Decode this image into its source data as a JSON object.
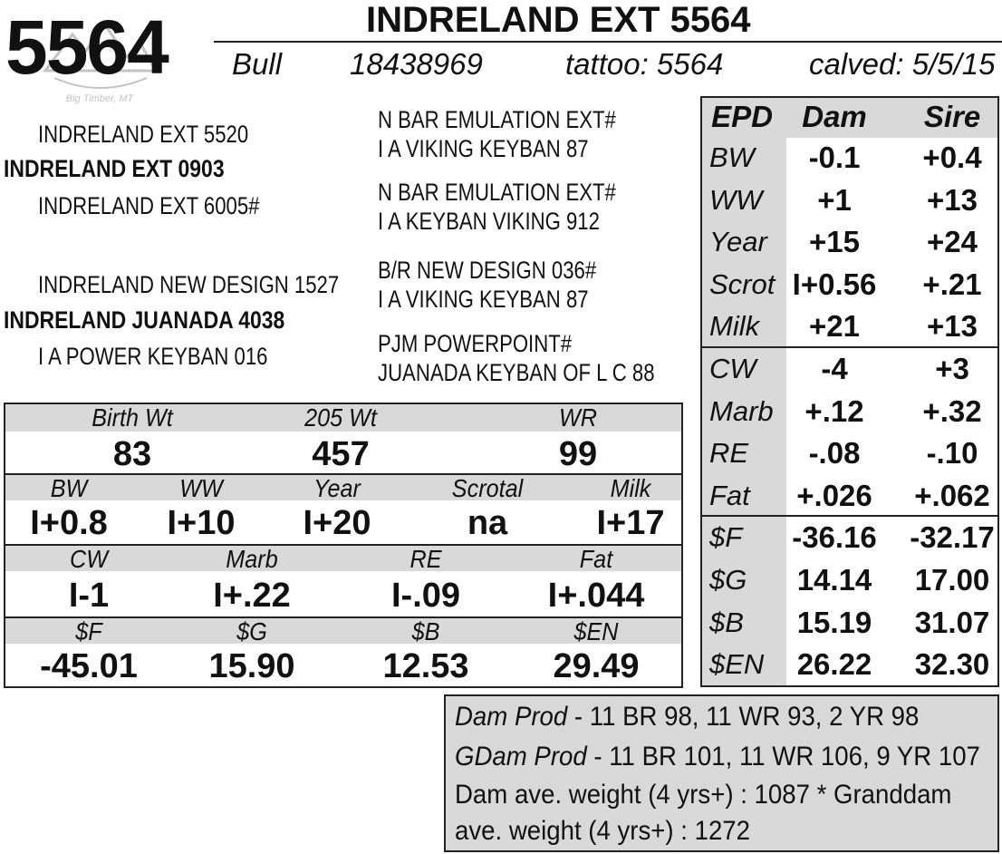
{
  "header": {
    "lot_number": "5564",
    "name": "INDRELAND EXT 5564",
    "sex": "Bull",
    "registration": "18438969",
    "tattoo": "tattoo: 5564",
    "calved": "calved: 5/5/15",
    "logo_text": "Big Timber, MT"
  },
  "pedigree": {
    "sire": "INDRELAND EXT 0903",
    "sire_sire": "INDRELAND EXT 5520",
    "sire_dam": "INDRELAND EXT 6005#",
    "sss": "N BAR EMULATION EXT#",
    "ssd": "I A VIKING KEYBAN 87",
    "sds": "N BAR EMULATION EXT#",
    "sdd": "I A KEYBAN VIKING 912",
    "dam": "INDRELAND JUANADA 4038",
    "dam_sire": "INDRELAND NEW DESIGN 1527",
    "dam_dam": "I A POWER KEYBAN 016",
    "dss": "B/R NEW DESIGN 036#",
    "dsd": "I A VIKING KEYBAN 87",
    "dds": "PJM POWERPOINT#",
    "ddd": "JUANADA KEYBAN OF L C 88"
  },
  "performance": {
    "weights": {
      "labels": [
        "Birth Wt",
        "205 Wt",
        "WR"
      ],
      "values": [
        "83",
        "457",
        "99"
      ]
    },
    "epd_growth": {
      "labels": [
        "BW",
        "WW",
        "Year",
        "Scrotal",
        "Milk"
      ],
      "values": [
        "I+0.8",
        "I+10",
        "I+20",
        "na",
        "I+17"
      ]
    },
    "epd_carcass": {
      "labels": [
        "CW",
        "Marb",
        "RE",
        "Fat"
      ],
      "values": [
        "I-1",
        "I+.22",
        "I-.09",
        "I+.044"
      ]
    },
    "indexes": {
      "labels": [
        "$F",
        "$G",
        "$B",
        "$EN"
      ],
      "values": [
        "-45.01",
        "15.90",
        "12.53",
        "29.49"
      ]
    }
  },
  "epd_table": {
    "headers": [
      "EPD",
      "Dam",
      "Sire"
    ],
    "rows": [
      {
        "label": "BW",
        "dam": "-0.1",
        "sire": "+0.4"
      },
      {
        "label": "WW",
        "dam": "+1",
        "sire": "+13"
      },
      {
        "label": "Year",
        "dam": "+15",
        "sire": "+24"
      },
      {
        "label": "Scrot",
        "dam": "I+0.56",
        "sire": "+.21"
      },
      {
        "label": "Milk",
        "dam": "+21",
        "sire": "+13"
      },
      {
        "label": "CW",
        "dam": "-4",
        "sire": "+3"
      },
      {
        "label": "Marb",
        "dam": "+.12",
        "sire": "+.32"
      },
      {
        "label": "RE",
        "dam": "-.08",
        "sire": "-.10"
      },
      {
        "label": "Fat",
        "dam": "+.026",
        "sire": "+.062"
      },
      {
        "label": "$F",
        "dam": "-36.16",
        "sire": "-32.17"
      },
      {
        "label": "$G",
        "dam": "14.14",
        "sire": "17.00"
      },
      {
        "label": "$B",
        "dam": "15.19",
        "sire": "31.07"
      },
      {
        "label": "$EN",
        "dam": "26.22",
        "sire": "32.30"
      }
    ]
  },
  "production": {
    "dam_prod_label": "Dam Prod",
    "dam_prod_text": " - 11 BR 98, 11 WR 93, 2 YR 98",
    "gdam_prod_label": "GDam Prod",
    "gdam_prod_text": " - 11 BR 101, 11 WR 106, 9 YR 107",
    "weight_line1": "Dam ave. weight (4 yrs+) : 1087 * Granddam",
    "weight_line2": "ave. weight (4 yrs+) : 1272"
  }
}
